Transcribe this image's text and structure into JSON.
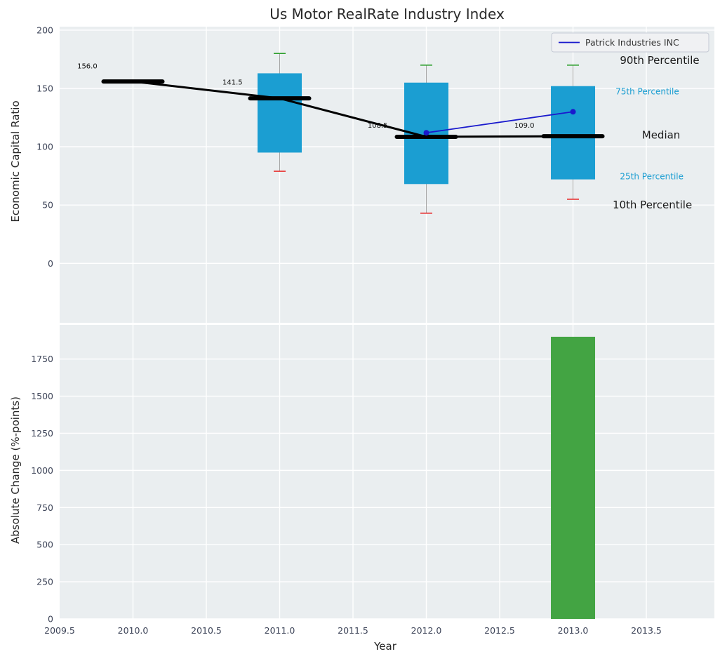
{
  "title": "Us Motor RealRate Industry Index",
  "colors": {
    "panel_bg": "#eaeef0",
    "grid": "#ffffff",
    "box_fill": "#1b9ed2",
    "whisker": "#a3a3a3",
    "cap_high": "#2da02d",
    "cap_low": "#e83030",
    "median": "#000000",
    "company_line": "#1a1acd",
    "bar_fill": "#43a443",
    "tick_label": "#3d4458",
    "axis_text": "#262626",
    "legend_bg": "#f0f1f3",
    "legend_border": "#c4c9d4",
    "legend_text": "#333333"
  },
  "chart_data": [
    {
      "type": "boxplot",
      "title": "Us Motor RealRate Industry Index",
      "ylabel": "Economic Capital Ratio",
      "ylim": [
        -51,
        203
      ],
      "yticks": [
        0,
        50,
        100,
        150,
        200
      ],
      "xlim": [
        2009.5,
        2013.964
      ],
      "xticks": [
        2009.5,
        2010,
        2010.5,
        2011,
        2011.5,
        2012,
        2012.5,
        2013,
        2013.5
      ],
      "xtick_labels": [
        "2009.5",
        "2010.0",
        "2010.5",
        "2011.0",
        "2011.5",
        "2012.0",
        "2012.5",
        "2013.0",
        "2013.5"
      ],
      "grid": true,
      "legend_position": "upper right",
      "legend_label": "Patrick Industries INC",
      "boxes": [
        {
          "year": 2010,
          "median": 156.0
        },
        {
          "year": 2011,
          "median": 141.5,
          "q1": 95,
          "q3": 163,
          "p10": 79,
          "p90": 180
        },
        {
          "year": 2012,
          "median": 108.5,
          "q1": 68,
          "q3": 155,
          "p10": 43,
          "p90": 170
        },
        {
          "year": 2013,
          "median": 109.0,
          "q1": 72,
          "q3": 152,
          "p10": 55,
          "p90": 170
        }
      ],
      "median_line": {
        "x": [
          2010,
          2011,
          2012,
          2013
        ],
        "y": [
          156.0,
          141.5,
          108.5,
          109.0
        ]
      },
      "company_series": {
        "name": "Patrick Industries INC",
        "x": [
          2012,
          2013
        ],
        "y": [
          112,
          130
        ]
      },
      "median_labels": [
        {
          "text": "156.0",
          "x": 2009.62,
          "y": 169
        },
        {
          "text": "141.5",
          "x": 2010.61,
          "y": 155
        },
        {
          "text": "108.5",
          "x": 2011.6,
          "y": 118
        },
        {
          "text": "109.0",
          "x": 2012.6,
          "y": 118
        }
      ],
      "annotations": [
        {
          "text": "90th Percentile",
          "x": 2013.32,
          "y": 174,
          "size": 15,
          "color": "#1a1a1a"
        },
        {
          "text": "75th Percentile",
          "x": 2013.29,
          "y": 148,
          "size": 12,
          "color": "#1b9ed2"
        },
        {
          "text": "Median",
          "x": 2013.47,
          "y": 110,
          "size": 15,
          "color": "#1a1a1a"
        },
        {
          "text": "25th Percentile",
          "x": 2013.32,
          "y": 75,
          "size": 12,
          "color": "#1b9ed2"
        },
        {
          "text": "10th Percentile",
          "x": 2013.27,
          "y": 50,
          "size": 15,
          "color": "#1a1a1a"
        }
      ]
    },
    {
      "type": "bar",
      "ylabel": "Absolute Change (%-points)",
      "xlabel": "Year",
      "ylim": [
        0,
        1980
      ],
      "yticks": [
        0,
        250,
        500,
        750,
        1000,
        1250,
        1500,
        1750
      ],
      "bars": [
        {
          "year": 2013,
          "value": 1900
        }
      ],
      "grid": true
    }
  ]
}
